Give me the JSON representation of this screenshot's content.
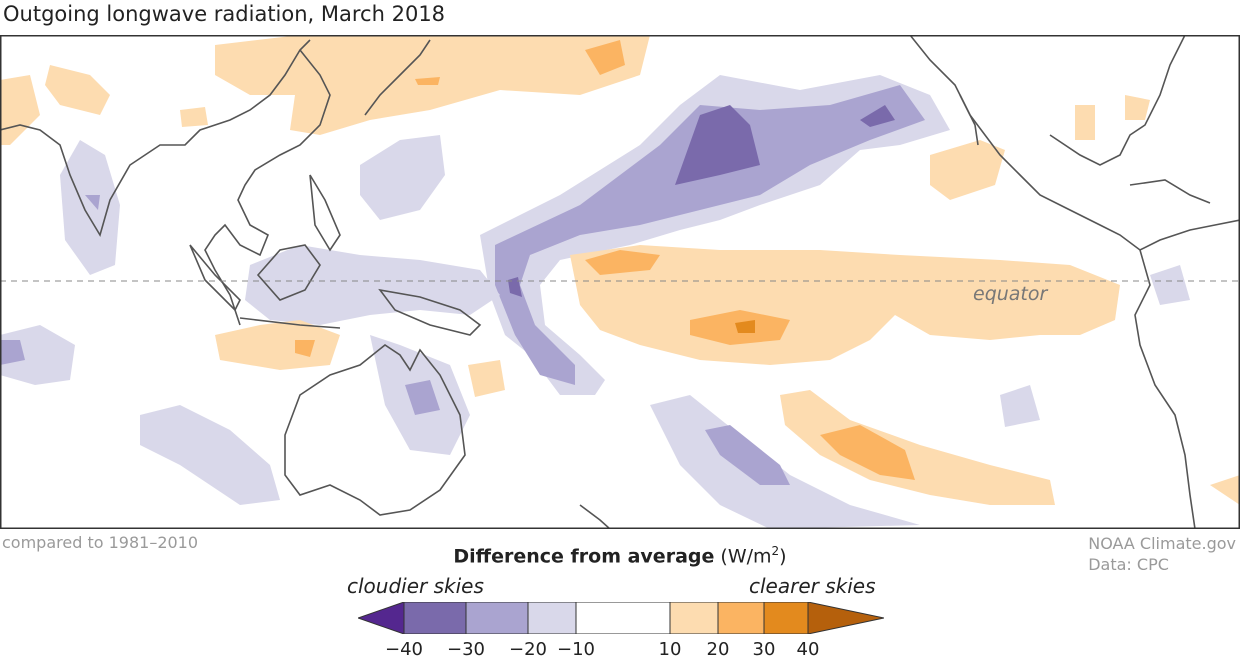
{
  "title": "Outgoing longwave radiation, March 2018",
  "equator_label": "equator",
  "baseline_note": "compared to 1981–2010",
  "credit": {
    "org": "NOAA Climate.gov",
    "source": "Data: CPC"
  },
  "legend": {
    "title_bold": "Difference from average",
    "units_text": "(W/m",
    "units_sup": "2",
    "units_close": ")",
    "left_label": "cloudier skies",
    "right_label": "clearer skies",
    "ticks": [
      "−40",
      "−30",
      "−20",
      "−10",
      "10",
      "20",
      "30",
      "40"
    ],
    "colors": {
      "lt_-40": "#54278f",
      "-40_-30": "#7a6aab",
      "-30_-20": "#aaa4d0",
      "-20_-10": "#d9d8ea",
      "-10_10": "#ffffff",
      "10_20": "#fddcb0",
      "20_30": "#fbb462",
      "30_40": "#e38a1e",
      "gt_40": "#b5600c"
    }
  }
}
